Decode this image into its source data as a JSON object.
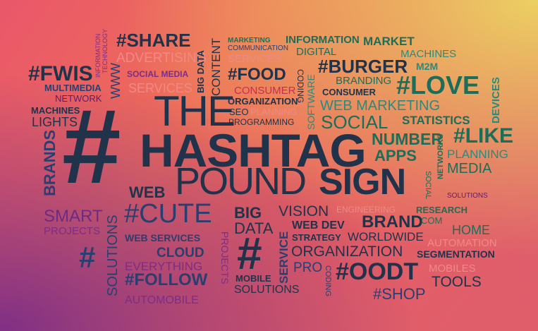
{
  "words": {
    "hash_big": "#",
    "the": "THE",
    "hashtag": "HASHTAG",
    "pound": "POUND",
    "sign": "SIGN",
    "share": "#SHARE",
    "fwis": "#FWIS",
    "food": "#FOOD",
    "burger": "#BURGER",
    "love": "#LOVE",
    "like": "#LIKE",
    "cute": "#CUTE",
    "oodt": "#OODT",
    "follow": "#FOLLOW",
    "shop": "#SHOP",
    "hash_small_left": "#",
    "hash_mid": "#",
    "advertising": "ADVERTISING",
    "social_media": "SOCIAL MEDIA",
    "services_top": "SERVICES",
    "multimedia": "MULTIMEDIA",
    "network": "NETWORK",
    "machines_left": "MACHINES",
    "lights": "LIGHTS",
    "brands": "BRANDS",
    "www": "WWW",
    "information_tech": "INFORMATION",
    "technology": "TECHNOLOGY",
    "big_data_vert": "BIG DATA",
    "content": "CONTENT",
    "marketing_small": "MARKETING",
    "communication": "COMMUNICATION",
    "services_small": "SERVICES",
    "information": "INFORMATION",
    "market": "MARKET",
    "digital": "DIGITAL",
    "machines_right": "MACHINES",
    "m2m": "M2M",
    "coding_top": "CODING",
    "consumer_left": "CONSUMER",
    "branding": "BRANDING",
    "consumer_right": "CONSUMER",
    "organization_small": "ORGANIZATION",
    "seo": "SEO",
    "planning_small": "PLANNING",
    "programming": "PROGRAMMING",
    "software": "SOFTWARE",
    "web_marketing": "WEB MARKETING",
    "social": "SOCIAL",
    "statistics": "STATISTICS",
    "devices": "DEVICES",
    "number": "NUMBER",
    "apps": "APPS",
    "networks": "NETWORKS",
    "planning_right": "PLANNING",
    "media": "MEDIA",
    "social_vert": "SOCIAL",
    "solutions_right": "SOLUTIONS",
    "web": "WEB",
    "smart": "SMART",
    "projects_left": "PROJECTS",
    "solutions_vert_left": "SOLUTIONS",
    "big": "BIG",
    "data": "DATA",
    "vision": "VISION",
    "engineering": "ENGINEERING",
    "research": "RESEARCH",
    "brand": "BRAND",
    "com": "COM",
    "home": "HOME",
    "automation": "AUTOMATION",
    "web_services": "WEB SERVICES",
    "projects_vert": "PROJECTS",
    "web_dev": "WEB DEV",
    "strategy": "STRATEGY",
    "worldwide": "WORLDWIDE",
    "service_vert": "SERVICE",
    "cloud": "CLOUD",
    "organization_big": "ORGANIZATION",
    "segmentation": "SEGMENTATION",
    "everything": "EVERYTHING",
    "pro": "PRO",
    "coding_bottom": "CODING",
    "mobiles": "MOBILES",
    "mobile": "MOBILE",
    "solutions_bottom": "SOLUTIONS",
    "tools": "TOOLS",
    "automobile": "AUTOMOBILE"
  }
}
